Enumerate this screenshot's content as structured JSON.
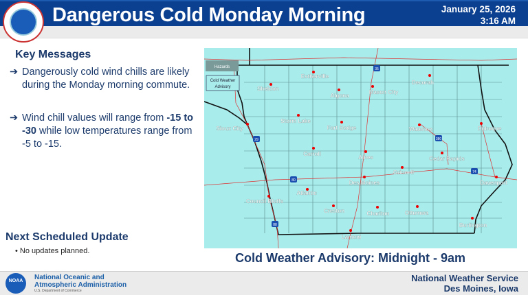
{
  "header": {
    "title": "Dangerous Cold Monday Morning",
    "date": "January 25, 2026",
    "time": "3:16 AM",
    "logo_text": "NATIONAL WEATHER SERVICE"
  },
  "key_messages": {
    "heading": "Key Messages",
    "items": [
      {
        "text": "Dangerously cold wind chills are likely during the Monday morning commute."
      },
      {
        "pre": "Wind chill values will range from ",
        "bold": "-15 to -30",
        "post": " while low temperatures range from -5 to -15."
      }
    ],
    "arrow": "➔"
  },
  "next_update": {
    "heading": "Next Scheduled Update",
    "items": [
      "No updates planned."
    ]
  },
  "map": {
    "legend_title": "Hazards",
    "legend_item": "Cold Weather Advisory",
    "fill_color": "#a8ecec",
    "cities": [
      "Estherville",
      "Sheldon",
      "Algona",
      "Mason City",
      "Decorah",
      "Storm Lake",
      "Fort Dodge",
      "Sioux City",
      "Waterloo",
      "Dubuque",
      "Carroll",
      "Ames",
      "Grinnell",
      "Cedar Rapids",
      "Des Moines",
      "Atlantic",
      "Davenport",
      "Council Bluffs",
      "Creston",
      "Chariton",
      "Ottumwa",
      "Burlington",
      "Lamoni"
    ],
    "interstates": [
      "29",
      "35",
      "80",
      "380",
      "74",
      "88"
    ]
  },
  "caption": "Cold Weather Advisory: Midnight - 9am",
  "footer": {
    "noaa_logo": "NOAA",
    "noaa_line1": "National Oceanic and",
    "noaa_line2": "Atmospheric Administration",
    "noaa_dept": "U.S. Department of Commerce",
    "nws": "National Weather Service",
    "office": "Des Moines, Iowa"
  }
}
